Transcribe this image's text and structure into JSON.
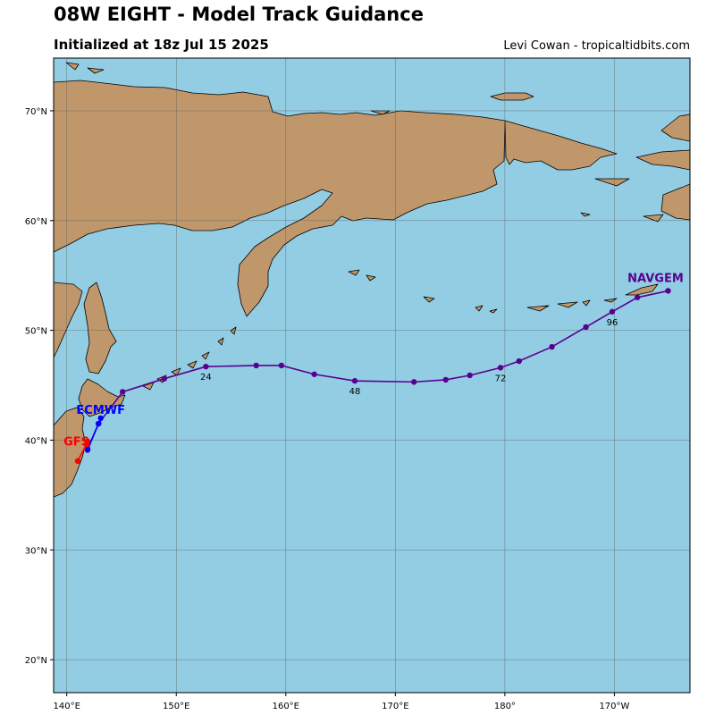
{
  "header": {
    "title": "08W EIGHT - Model Track Guidance",
    "subtitle": "Initialized at 18z Jul 15 2025",
    "credit": "Levi Cowan - tropicaltidbits.com"
  },
  "colors": {
    "ocean": "#92cde3",
    "land": "#c0976b",
    "gfs": "#ff0000",
    "ecmwf": "#0000ff",
    "navgem": "#5a0090"
  },
  "map": {
    "lon_range": [
      138.8,
      196.9
    ],
    "lat_range": [
      17.0,
      74.8
    ],
    "lon_ticks": [
      {
        "value": 140,
        "label": "140°E"
      },
      {
        "value": 150,
        "label": "150°E"
      },
      {
        "value": 160,
        "label": "160°E"
      },
      {
        "value": 170,
        "label": "170°E"
      },
      {
        "value": 180,
        "label": "180°"
      },
      {
        "value": 190,
        "label": "170°W"
      }
    ],
    "lat_ticks": [
      {
        "value": 70,
        "label": "70°N"
      },
      {
        "value": 60,
        "label": "60°N"
      },
      {
        "value": 50,
        "label": "50°N"
      },
      {
        "value": 40,
        "label": "40°N"
      },
      {
        "value": 30,
        "label": "30°N"
      },
      {
        "value": 20,
        "label": "20°N"
      }
    ],
    "grid": true
  },
  "tracks": [
    {
      "name": "GFS",
      "color": "#ff0000",
      "points": [
        [
          141.0,
          38.1
        ],
        [
          141.8,
          39.6
        ],
        [
          141.9,
          39.9
        ]
      ]
    },
    {
      "name": "ECMWF",
      "color": "#0000ff",
      "points": [
        [
          141.9,
          39.2
        ],
        [
          142.9,
          41.5
        ],
        [
          143.1,
          42.0
        ]
      ]
    },
    {
      "name": "NAVGEM",
      "color": "#5a0090",
      "points": [
        [
          141.9,
          39.1
        ],
        [
          142.9,
          41.5
        ],
        [
          145.1,
          44.4
        ],
        [
          148.9,
          45.6
        ],
        [
          152.7,
          46.7
        ],
        [
          157.3,
          46.8
        ],
        [
          159.6,
          46.8
        ],
        [
          162.6,
          46.0
        ],
        [
          166.3,
          45.4
        ],
        [
          171.7,
          45.3
        ],
        [
          174.6,
          45.5
        ],
        [
          176.8,
          45.9
        ],
        [
          179.6,
          46.6
        ],
        [
          181.3,
          47.2
        ],
        [
          184.3,
          48.5
        ],
        [
          187.4,
          50.3
        ],
        [
          189.8,
          51.7
        ],
        [
          192.1,
          53.0
        ],
        [
          194.9,
          53.6
        ]
      ]
    }
  ],
  "hour_labels": [
    {
      "text": "24",
      "lon": 152.7,
      "lat": 46.7
    },
    {
      "text": "48",
      "lon": 166.3,
      "lat": 45.4
    },
    {
      "text": "72",
      "lon": 179.6,
      "lat": 46.6
    },
    {
      "text": "96",
      "lon": 189.8,
      "lat": 51.7
    }
  ],
  "model_labels": [
    {
      "text": "GFS",
      "color": "#ff0000",
      "lon": 141.9,
      "lat": 39.9
    },
    {
      "text": "ECMWF",
      "color": "#0000ff",
      "lon": 143.1,
      "lat": 42.0
    },
    {
      "text": "NAVGEM",
      "color": "#5a0090",
      "lon": 194.9,
      "lat": 53.6
    }
  ]
}
